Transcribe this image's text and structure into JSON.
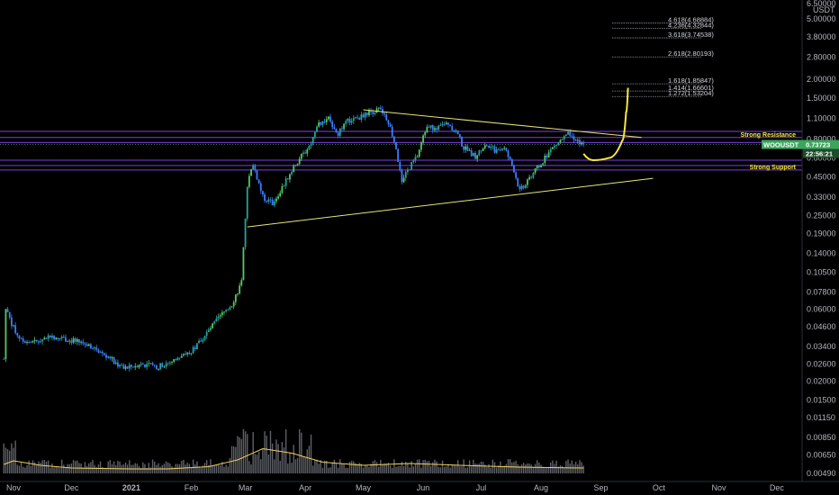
{
  "chart_data": {
    "type": "candlestick",
    "scale": "log",
    "grid": false,
    "ylim": [
      0.0042,
      6.5
    ],
    "currency_label": "USDT",
    "price_top_label": "6.50000",
    "y_ticks": [
      "5.00000",
      "3.80000",
      "2.80000",
      "2.00000",
      "1.50000",
      "1.10000",
      "0.80000",
      "0.60000",
      "0.45000",
      "0.33000",
      "0.25000",
      "0.19000",
      "0.14000",
      "0.10500",
      "0.07800",
      "0.06000",
      "0.04600",
      "0.03400",
      "0.02600",
      "0.02000",
      "0.01500",
      "0.01150",
      "0.00850",
      "0.00650",
      "0.00490"
    ],
    "x_ticks": [
      "Nov",
      "Dec",
      "2021",
      "Feb",
      "Mar",
      "Apr",
      "May",
      "Jun",
      "Jul",
      "Aug",
      "Sep",
      "Oct",
      "Nov",
      "Dec"
    ],
    "symbol": "WOOUSDT",
    "last_price": "0.73723",
    "countdown": "22:56:21",
    "fib_levels": [
      {
        "label": "4.618(4.68884)",
        "value": 4.68884
      },
      {
        "label": "4.236(4.32844)",
        "value": 4.32844
      },
      {
        "label": "3.618(3.74538)",
        "value": 3.74538
      },
      {
        "label": "2.618(2.80193)",
        "value": 2.80193
      },
      {
        "label": "1.618(1.85847)",
        "value": 1.85847
      },
      {
        "label": "1.414(1.66601)",
        "value": 1.66601
      },
      {
        "label": "1.272(1.53204)",
        "value": 1.53204
      }
    ],
    "zones": [
      {
        "label": "Strong Resistance",
        "levels": [
          0.9,
          0.82,
          0.76
        ]
      },
      {
        "label": "Strong Support",
        "levels": [
          0.58,
          0.535,
          0.5
        ]
      }
    ],
    "price_path": [
      [
        "2020-10-27",
        0.028
      ],
      [
        "2020-10-28",
        0.06
      ],
      [
        "2020-11-01",
        0.045
      ],
      [
        "2020-11-05",
        0.037
      ],
      [
        "2020-11-12",
        0.036
      ],
      [
        "2020-11-20",
        0.04
      ],
      [
        "2020-11-28",
        0.038
      ],
      [
        "2020-12-10",
        0.035
      ],
      [
        "2020-12-20",
        0.029
      ],
      [
        "2020-12-28",
        0.024
      ],
      [
        "2021-01-05",
        0.026
      ],
      [
        "2021-01-15",
        0.025
      ],
      [
        "2021-01-25",
        0.028
      ],
      [
        "2021-02-01",
        0.031
      ],
      [
        "2021-02-08",
        0.04
      ],
      [
        "2021-02-15",
        0.052
      ],
      [
        "2021-02-22",
        0.065
      ],
      [
        "2021-02-27",
        0.09
      ],
      [
        "2021-03-02",
        0.4
      ],
      [
        "2021-03-05",
        0.55
      ],
      [
        "2021-03-10",
        0.33
      ],
      [
        "2021-03-15",
        0.3
      ],
      [
        "2021-03-20",
        0.38
      ],
      [
        "2021-03-27",
        0.55
      ],
      [
        "2021-04-03",
        0.72
      ],
      [
        "2021-04-08",
        1.0
      ],
      [
        "2021-04-13",
        1.1
      ],
      [
        "2021-04-18",
        0.88
      ],
      [
        "2021-04-23",
        1.05
      ],
      [
        "2021-04-28",
        1.1
      ],
      [
        "2021-05-04",
        1.2
      ],
      [
        "2021-05-10",
        1.28
      ],
      [
        "2021-05-14",
        1.05
      ],
      [
        "2021-05-18",
        0.7
      ],
      [
        "2021-05-21",
        0.4
      ],
      [
        "2021-05-24",
        0.5
      ],
      [
        "2021-05-29",
        0.62
      ],
      [
        "2021-06-03",
        1.0
      ],
      [
        "2021-06-08",
        0.92
      ],
      [
        "2021-06-13",
        1.05
      ],
      [
        "2021-06-18",
        0.9
      ],
      [
        "2021-06-22",
        0.7
      ],
      [
        "2021-06-28",
        0.62
      ],
      [
        "2021-07-03",
        0.72
      ],
      [
        "2021-07-08",
        0.68
      ],
      [
        "2021-07-13",
        0.7
      ],
      [
        "2021-07-18",
        0.5
      ],
      [
        "2021-07-21",
        0.36
      ],
      [
        "2021-07-25",
        0.43
      ],
      [
        "2021-08-01",
        0.55
      ],
      [
        "2021-08-06",
        0.68
      ],
      [
        "2021-08-11",
        0.78
      ],
      [
        "2021-08-15",
        0.86
      ],
      [
        "2021-08-19",
        0.8
      ],
      [
        "2021-08-23",
        0.73723
      ]
    ],
    "volume_ma": [
      [
        "2020-10-27",
        0.2
      ],
      [
        "2020-11-01",
        0.28
      ],
      [
        "2020-11-15",
        0.18
      ],
      [
        "2020-12-01",
        0.12
      ],
      [
        "2021-01-01",
        0.1
      ],
      [
        "2021-01-20",
        0.1
      ],
      [
        "2021-02-10",
        0.15
      ],
      [
        "2021-02-25",
        0.3
      ],
      [
        "2021-03-10",
        0.55
      ],
      [
        "2021-03-25",
        0.45
      ],
      [
        "2021-04-10",
        0.25
      ],
      [
        "2021-05-01",
        0.18
      ],
      [
        "2021-05-25",
        0.22
      ],
      [
        "2021-06-20",
        0.18
      ],
      [
        "2021-07-20",
        0.14
      ],
      [
        "2021-08-23",
        0.12
      ]
    ],
    "trendlines": [
      {
        "from": [
          "2021-05-01",
          1.25
        ],
        "to": [
          "2021-09-22",
          0.82
        ]
      },
      {
        "from": [
          "2021-03-02",
          0.21
        ],
        "to": [
          "2021-09-28",
          0.44
        ]
      }
    ],
    "projection": [
      [
        "2021-08-23",
        0.64
      ],
      [
        "2021-08-28",
        0.58
      ],
      [
        "2021-09-05",
        0.6
      ],
      [
        "2021-09-12",
        0.78
      ],
      [
        "2021-09-14",
        1.2
      ],
      [
        "2021-09-15",
        1.75
      ]
    ],
    "colors": {
      "up": "#26a69a",
      "down": "#3d7dff",
      "upAlt": "#53c964",
      "volume": "#5d6068",
      "volume_ma": "#f0d060",
      "fib": "#8a8d96",
      "zone": "#7b3fe4",
      "trendline": "#e8e47a",
      "projection": "#f5e642",
      "tag": "#3ba55c"
    }
  }
}
